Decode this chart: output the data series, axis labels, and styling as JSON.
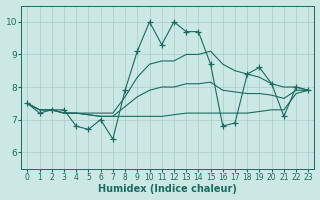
{
  "xlabel": "Humidex (Indice chaleur)",
  "bg_color": "#cce8e4",
  "grid_color": "#aacccc",
  "line_color": "#1a6b60",
  "xlim": [
    -0.5,
    23.5
  ],
  "ylim": [
    5.5,
    10.5
  ],
  "yticks": [
    6,
    7,
    8,
    9,
    10
  ],
  "xticks": [
    0,
    1,
    2,
    3,
    4,
    5,
    6,
    7,
    8,
    9,
    10,
    11,
    12,
    13,
    14,
    15,
    16,
    17,
    18,
    19,
    20,
    21,
    22,
    23
  ],
  "series": [
    7.5,
    7.2,
    7.3,
    7.3,
    6.8,
    6.7,
    7.0,
    6.4,
    7.9,
    9.1,
    10.0,
    9.3,
    10.0,
    9.7,
    9.7,
    8.7,
    6.8,
    6.9,
    8.4,
    8.6,
    8.1,
    7.1,
    8.0,
    7.9
  ],
  "min_series": [
    7.5,
    7.3,
    7.3,
    7.2,
    7.2,
    7.15,
    7.1,
    7.1,
    7.1,
    7.1,
    7.1,
    7.1,
    7.15,
    7.2,
    7.2,
    7.2,
    7.2,
    7.2,
    7.2,
    7.25,
    7.3,
    7.3,
    7.8,
    7.9
  ],
  "max_series": [
    7.5,
    7.3,
    7.3,
    7.2,
    7.2,
    7.2,
    7.2,
    7.2,
    7.7,
    8.3,
    8.7,
    8.8,
    8.8,
    9.0,
    9.0,
    9.1,
    8.7,
    8.5,
    8.4,
    8.3,
    8.1,
    8.0,
    8.0,
    7.9
  ],
  "mean_series": [
    7.5,
    7.3,
    7.3,
    7.2,
    7.2,
    7.15,
    7.1,
    7.1,
    7.4,
    7.7,
    7.9,
    8.0,
    8.0,
    8.1,
    8.1,
    8.15,
    7.9,
    7.85,
    7.8,
    7.8,
    7.75,
    7.65,
    7.9,
    7.9
  ]
}
